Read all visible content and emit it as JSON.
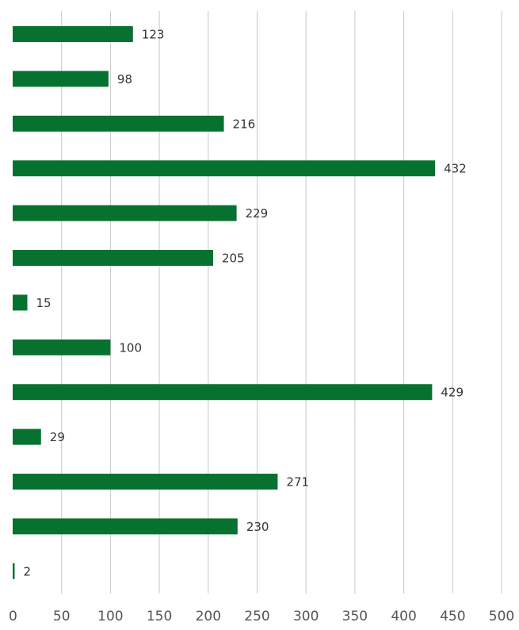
{
  "chart_data": {
    "type": "bar",
    "orientation": "horizontal",
    "title": "",
    "xlabel": "",
    "ylabel": "",
    "categories": [
      "",
      "",
      "",
      "",
      "",
      "",
      "",
      "",
      "",
      "",
      "",
      "",
      ""
    ],
    "values": [
      123,
      98,
      216,
      432,
      229,
      205,
      15,
      100,
      429,
      29,
      271,
      230,
      2
    ],
    "xlim": [
      0,
      500
    ],
    "xticks": [
      0,
      50,
      100,
      150,
      200,
      250,
      300,
      350,
      400,
      450,
      500
    ],
    "xtick_labels": [
      "0",
      "50",
      "100",
      "150",
      "200",
      "250",
      "300",
      "350",
      "400",
      "450",
      "500"
    ],
    "data_labels": [
      "123",
      "98",
      "216",
      "432",
      "229",
      "205",
      "15",
      "100",
      "429",
      "29",
      "271",
      "230",
      "2"
    ],
    "grid": "vertical",
    "legend": "none",
    "bar_color": "#077230"
  }
}
